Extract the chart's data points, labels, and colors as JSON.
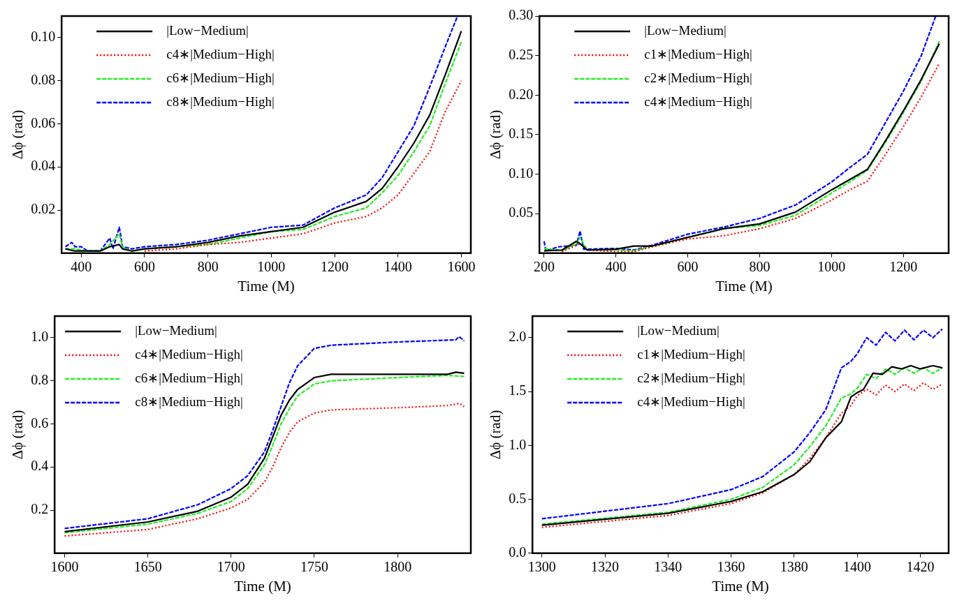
{
  "chart_data": [
    {
      "type": "line",
      "xlabel": "Time (M)",
      "ylabel": "Δϕ (rad)",
      "xlim": [
        338,
        1630
      ],
      "ylim": [
        0,
        0.11
      ],
      "xticks": [
        400,
        600,
        800,
        1000,
        1200,
        1400,
        1600
      ],
      "yticks": [
        0.02,
        0.04,
        0.06,
        0.08,
        {
          "value": 0.1,
          "label": "0.10"
        }
      ],
      "grid": false,
      "legend": "top left",
      "series": [
        {
          "name": "|Low−Medium|",
          "color": "#000000",
          "line_style": "solid",
          "x": [
            350,
            380,
            420,
            460,
            490,
            520,
            530,
            560,
            600,
            700,
            800,
            900,
            1000,
            1100,
            1200,
            1300,
            1350,
            1400,
            1450,
            1500,
            1550,
            1600
          ],
          "values": [
            0.002,
            0.001,
            0.001,
            0.001,
            0.003,
            0.004,
            0.002,
            0.001,
            0.002,
            0.003,
            0.005,
            0.008,
            0.01,
            0.012,
            0.019,
            0.024,
            0.03,
            0.04,
            0.051,
            0.064,
            0.083,
            0.103
          ]
        },
        {
          "name": "c4∗|Medium−High|",
          "color": "#ff0000",
          "line_style": "dotted",
          "x": [
            600,
            700,
            800,
            900,
            1000,
            1100,
            1200,
            1300,
            1350,
            1400,
            1450,
            1500,
            1550,
            1600
          ],
          "values": [
            0.001,
            0.002,
            0.004,
            0.005,
            0.007,
            0.009,
            0.014,
            0.017,
            0.021,
            0.027,
            0.037,
            0.047,
            0.066,
            0.08
          ]
        },
        {
          "name": "c6∗|Medium−High|",
          "color": "#22ee22",
          "line_style": "dashed",
          "x": [
            350,
            380,
            420,
            460,
            490,
            520,
            530,
            560,
            600,
            700,
            800,
            900,
            1000,
            1100,
            1200,
            1300,
            1350,
            1400,
            1450,
            1500,
            1550,
            1600
          ],
          "values": [
            0.002,
            0.002,
            0.001,
            0.001,
            0.004,
            0.009,
            0.003,
            0.001,
            0.002,
            0.003,
            0.004,
            0.007,
            0.01,
            0.011,
            0.017,
            0.021,
            0.028,
            0.036,
            0.047,
            0.059,
            0.079,
            0.098
          ]
        },
        {
          "name": "c8∗|Medium−High|",
          "color": "#0000ff",
          "line_style": "dashed",
          "x": [
            350,
            370,
            380,
            400,
            420,
            460,
            480,
            490,
            500,
            520,
            525,
            530,
            560,
            600,
            700,
            800,
            900,
            1000,
            1100,
            1200,
            1300,
            1350,
            1400,
            1450,
            1500,
            1550,
            1588
          ],
          "values": [
            0.003,
            0.005,
            0.003,
            0.003,
            0.001,
            0.001,
            0.005,
            0.007,
            0.002,
            0.012,
            0.008,
            0.003,
            0.002,
            0.003,
            0.004,
            0.006,
            0.009,
            0.012,
            0.013,
            0.021,
            0.027,
            0.035,
            0.047,
            0.059,
            0.077,
            0.096,
            0.11
          ]
        }
      ]
    },
    {
      "type": "line",
      "xlabel": "Time (M)",
      "ylabel": "Δϕ (rad)",
      "xlim": [
        187,
        1326
      ],
      "ylim": [
        0,
        0.3
      ],
      "xticks": [
        200,
        400,
        600,
        800,
        1000,
        1200
      ],
      "yticks": [
        0.05,
        {
          "value": 0.1,
          "label": "0.10"
        },
        0.15,
        {
          "value": 0.2,
          "label": "0.20"
        },
        0.25,
        {
          "value": 0.3,
          "label": "0.30"
        }
      ],
      "grid": false,
      "legend": "top left",
      "series": [
        {
          "name": "|Low−Medium|",
          "color": "#000000",
          "line_style": "solid",
          "x": [
            200,
            250,
            290,
            300,
            320,
            400,
            450,
            500,
            600,
            700,
            800,
            900,
            1000,
            1050,
            1100,
            1150,
            1200,
            1250,
            1300
          ],
          "values": [
            0.003,
            0.004,
            0.015,
            0.012,
            0.004,
            0.005,
            0.009,
            0.009,
            0.02,
            0.031,
            0.037,
            0.052,
            0.08,
            0.093,
            0.106,
            0.142,
            0.18,
            0.22,
            0.265
          ]
        },
        {
          "name": "c1∗|Medium−High|",
          "color": "#ff0000",
          "line_style": "dotted",
          "x": [
            250,
            300,
            320,
            400,
            450,
            500,
            600,
            700,
            800,
            900,
            1000,
            1050,
            1100,
            1150,
            1200,
            1250,
            1300
          ],
          "values": [
            0.002,
            0.012,
            0.004,
            0.002,
            0.002,
            0.008,
            0.018,
            0.022,
            0.031,
            0.044,
            0.067,
            0.08,
            0.091,
            0.125,
            0.16,
            0.198,
            0.24
          ]
        },
        {
          "name": "c2∗|Medium−High|",
          "color": "#22ee22",
          "line_style": "dashed",
          "x": [
            200,
            250,
            290,
            300,
            320,
            400,
            450,
            500,
            600,
            700,
            800,
            900,
            1000,
            1050,
            1100,
            1150,
            1200,
            1250,
            1300
          ],
          "values": [
            0.006,
            0.003,
            0.012,
            0.02,
            0.004,
            0.004,
            0.003,
            0.009,
            0.02,
            0.031,
            0.035,
            0.048,
            0.076,
            0.09,
            0.105,
            0.14,
            0.178,
            0.218,
            0.268
          ]
        },
        {
          "name": "c4∗|Medium−High|",
          "color": "#0000ff",
          "line_style": "dashed",
          "x": [
            200,
            205,
            240,
            290,
            300,
            310,
            400,
            450,
            500,
            600,
            700,
            800,
            900,
            1000,
            1050,
            1100,
            1150,
            1200,
            1250,
            1290
          ],
          "values": [
            0.015,
            0.003,
            0.008,
            0.01,
            0.028,
            0.005,
            0.006,
            0.004,
            0.01,
            0.024,
            0.033,
            0.044,
            0.061,
            0.09,
            0.108,
            0.125,
            0.165,
            0.205,
            0.25,
            0.3
          ]
        }
      ]
    },
    {
      "type": "line",
      "xlabel": "Time (M)",
      "ylabel": "Δϕ (rad)",
      "xlim": [
        1594,
        1844
      ],
      "ylim": [
        0,
        1.1
      ],
      "xticks": [
        1600,
        1650,
        1700,
        1750,
        1800
      ],
      "yticks": [
        0.2,
        0.4,
        0.6,
        0.8,
        {
          "value": 1,
          "label": "1.0"
        }
      ],
      "grid": false,
      "legend": "top left",
      "series": [
        {
          "name": "|Low−Medium|",
          "color": "#000000",
          "line_style": "solid",
          "x": [
            1600,
            1650,
            1680,
            1700,
            1710,
            1720,
            1725,
            1730,
            1735,
            1740,
            1750,
            1760,
            1800,
            1830,
            1835,
            1840
          ],
          "values": [
            0.1,
            0.145,
            0.195,
            0.26,
            0.32,
            0.44,
            0.54,
            0.64,
            0.71,
            0.76,
            0.815,
            0.83,
            0.83,
            0.83,
            0.84,
            0.835
          ]
        },
        {
          "name": "c4∗|Medium−High|",
          "color": "#ff0000",
          "line_style": "dotted",
          "x": [
            1600,
            1650,
            1680,
            1700,
            1710,
            1720,
            1725,
            1730,
            1735,
            1740,
            1750,
            1760,
            1800,
            1830,
            1837,
            1840
          ],
          "values": [
            0.08,
            0.11,
            0.16,
            0.21,
            0.25,
            0.33,
            0.4,
            0.49,
            0.56,
            0.61,
            0.65,
            0.665,
            0.675,
            0.685,
            0.695,
            0.68
          ]
        },
        {
          "name": "c6∗|Medium−High|",
          "color": "#22ee22",
          "line_style": "dashed",
          "x": [
            1600,
            1650,
            1680,
            1700,
            1710,
            1720,
            1725,
            1730,
            1735,
            1740,
            1750,
            1760,
            1800,
            1830,
            1840
          ],
          "values": [
            0.095,
            0.135,
            0.185,
            0.24,
            0.3,
            0.41,
            0.5,
            0.6,
            0.67,
            0.73,
            0.785,
            0.8,
            0.815,
            0.825,
            0.82
          ]
        },
        {
          "name": "c8∗|Medium−High|",
          "color": "#0000ff",
          "line_style": "dashed",
          "x": [
            1600,
            1650,
            1680,
            1700,
            1710,
            1720,
            1725,
            1730,
            1735,
            1740,
            1750,
            1760,
            1800,
            1835,
            1837,
            1840
          ],
          "values": [
            0.115,
            0.16,
            0.225,
            0.3,
            0.36,
            0.47,
            0.57,
            0.68,
            0.79,
            0.87,
            0.95,
            0.965,
            0.98,
            0.99,
            1.005,
            0.985
          ]
        }
      ]
    },
    {
      "type": "line",
      "xlabel": "Time (M)",
      "ylabel": "Δϕ (rad)",
      "xlim": [
        1297,
        1429
      ],
      "ylim": [
        0,
        2.2
      ],
      "xticks": [
        1300,
        1320,
        1340,
        1360,
        1380,
        1400,
        1420
      ],
      "yticks": [
        {
          "value": 0,
          "label": "0.0"
        },
        0.5,
        {
          "value": 1,
          "label": "1.0"
        },
        1.5,
        {
          "value": 2,
          "label": "2.0"
        }
      ],
      "grid": false,
      "legend": "top left",
      "series": [
        {
          "name": "|Low−Medium|",
          "color": "#000000",
          "line_style": "solid",
          "x": [
            1300,
            1340,
            1360,
            1370,
            1380,
            1385,
            1390,
            1395,
            1398,
            1400,
            1402,
            1405,
            1408,
            1411,
            1414,
            1417,
            1420,
            1424,
            1427
          ],
          "values": [
            0.26,
            0.37,
            0.48,
            0.57,
            0.73,
            0.85,
            1.07,
            1.22,
            1.45,
            1.49,
            1.52,
            1.67,
            1.66,
            1.73,
            1.71,
            1.74,
            1.71,
            1.74,
            1.72
          ]
        },
        {
          "name": "c1∗|Medium−High|",
          "color": "#ff0000",
          "line_style": "dotted",
          "x": [
            1300,
            1340,
            1360,
            1370,
            1380,
            1385,
            1390,
            1395,
            1398,
            1400,
            1403,
            1406,
            1409,
            1412,
            1415,
            1418,
            1421,
            1424,
            1427
          ],
          "values": [
            0.24,
            0.35,
            0.46,
            0.56,
            0.73,
            0.88,
            1.07,
            1.3,
            1.37,
            1.46,
            1.52,
            1.47,
            1.56,
            1.5,
            1.57,
            1.51,
            1.58,
            1.52,
            1.57
          ]
        },
        {
          "name": "c2∗|Medium−High|",
          "color": "#22ee22",
          "line_style": "dashed",
          "x": [
            1300,
            1340,
            1360,
            1370,
            1380,
            1385,
            1390,
            1395,
            1398,
            1400,
            1403,
            1406,
            1409,
            1412,
            1415,
            1418,
            1421,
            1424,
            1427
          ],
          "values": [
            0.27,
            0.38,
            0.5,
            0.61,
            0.82,
            0.99,
            1.18,
            1.44,
            1.48,
            1.53,
            1.66,
            1.62,
            1.71,
            1.66,
            1.72,
            1.67,
            1.72,
            1.67,
            1.72
          ]
        },
        {
          "name": "c4∗|Medium−High|",
          "color": "#0000ff",
          "line_style": "dashed",
          "x": [
            1300,
            1340,
            1360,
            1370,
            1380,
            1385,
            1390,
            1395,
            1398,
            1400,
            1403,
            1406,
            1409,
            1412,
            1415,
            1418,
            1421,
            1424,
            1427
          ],
          "values": [
            0.32,
            0.46,
            0.59,
            0.71,
            0.94,
            1.12,
            1.33,
            1.72,
            1.78,
            1.85,
            2.0,
            1.93,
            2.05,
            1.97,
            2.07,
            1.98,
            2.07,
            2.0,
            2.08
          ]
        }
      ]
    }
  ]
}
